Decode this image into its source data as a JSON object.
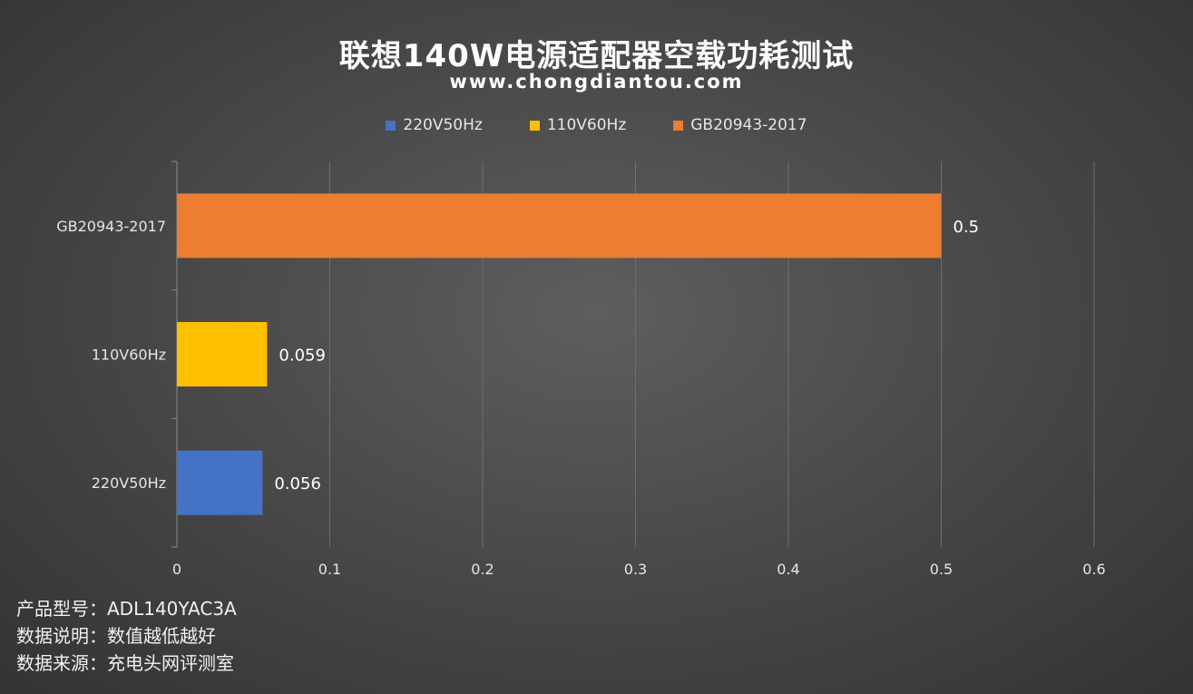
{
  "chart_data": {
    "type": "bar",
    "orientation": "horizontal",
    "title": "联想140W电源适配器空载功耗测试",
    "subtitle": "www.chongdiantou.com",
    "categories": [
      "220V50Hz",
      "110V60Hz",
      "GB20943-2017"
    ],
    "values": [
      0.056,
      0.059,
      0.5
    ],
    "value_labels": [
      "0.056",
      "0.059",
      "0.5"
    ],
    "colors": [
      "#4472C4",
      "#FFC000",
      "#ED7D31"
    ],
    "legend": [
      "220V50Hz",
      "110V60Hz",
      "GB20943-2017"
    ],
    "legend_placement": "top",
    "xlim": [
      0,
      0.6
    ],
    "xticks": [
      "0",
      "0.1",
      "0.2",
      "0.3",
      "0.4",
      "0.5",
      "0.6"
    ],
    "grid": true
  },
  "notes": {
    "model": "产品型号：ADL140YAC3A",
    "explanation": "数据说明：数值越低越好",
    "source": "数据来源：充电头网评测室"
  }
}
